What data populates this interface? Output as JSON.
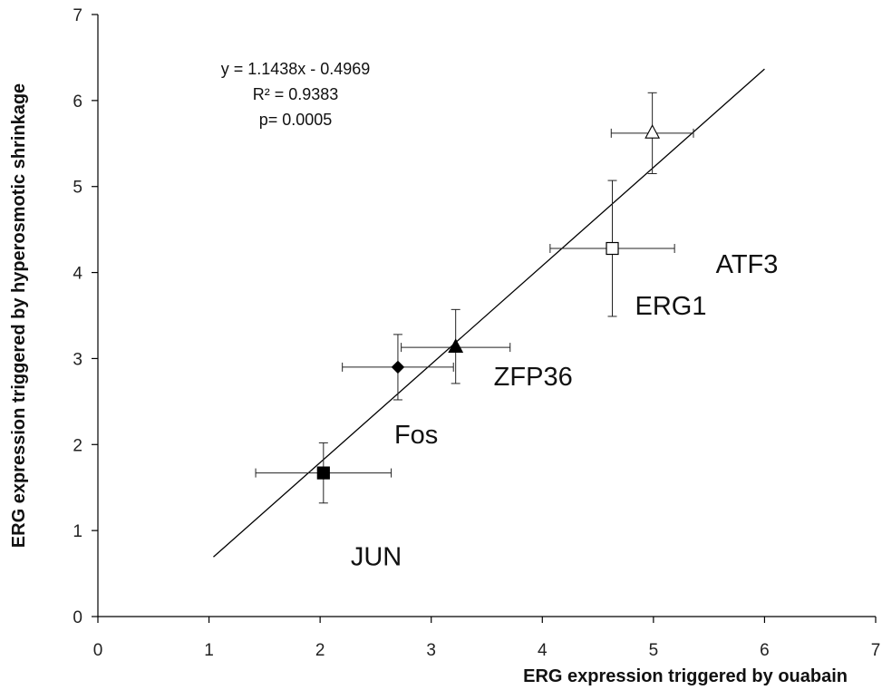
{
  "chart_data": {
    "type": "scatter",
    "xlabel": "ERG expression triggered by ouabain",
    "ylabel": "ERG expression triggered by hyperosmotic  shrinkage",
    "xlim": [
      0,
      7
    ],
    "ylim": [
      0,
      7
    ],
    "x_ticks": [
      "0",
      "1",
      "2",
      "3",
      "4",
      "5",
      "6",
      "7"
    ],
    "y_ticks": [
      "0",
      "1",
      "2",
      "3",
      "4",
      "5",
      "6",
      "7"
    ],
    "grid": false,
    "points": [
      {
        "name": "JUN",
        "x": 2.03,
        "y": 1.67,
        "xerr": 0.61,
        "yerr_low": 0.35,
        "yerr_high": 0.35,
        "marker": "square",
        "fill": "#000000"
      },
      {
        "name": "Fos",
        "x": 2.7,
        "y": 2.9,
        "xerr": 0.5,
        "yerr_low": 0.38,
        "yerr_high": 0.38,
        "marker": "diamond",
        "fill": "#000000"
      },
      {
        "name": "ZFP36",
        "x": 3.22,
        "y": 3.13,
        "xerr": 0.49,
        "yerr_low": 0.42,
        "yerr_high": 0.44,
        "marker": "triangle",
        "fill": "#000000"
      },
      {
        "name": "ERG1",
        "x": 4.63,
        "y": 4.28,
        "xerr": 0.56,
        "yerr_low": 0.79,
        "yerr_high": 0.79,
        "marker": "square",
        "fill": "#ffffff"
      },
      {
        "name": "ATF3",
        "x": 4.99,
        "y": 5.62,
        "xerr": 0.37,
        "yerr_low": 0.47,
        "yerr_high": 0.47,
        "marker": "triangle",
        "fill": "#ffffff"
      }
    ],
    "trendline": {
      "slope": 1.1438,
      "intercept": -0.4969,
      "x_range": [
        1.04,
        6.0
      ]
    },
    "annotations": [
      "y = 1.1438x - 0.4969",
      "R² = 0.9383",
      "p= 0.0005"
    ]
  }
}
